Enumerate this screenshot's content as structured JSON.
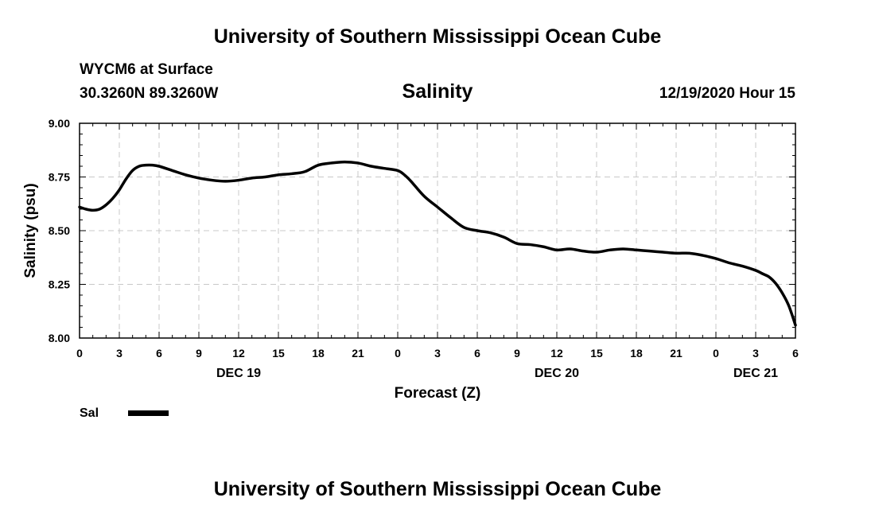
{
  "header": {
    "org_title": "University of Southern Mississippi Ocean Cube",
    "station": "WYCM6 at Surface",
    "coords": "30.3260N 89.3260W",
    "datetime": "12/19/2020 Hour 15"
  },
  "footer": {
    "org_title": "University of Southern Mississippi Ocean Cube"
  },
  "legend": {
    "label": "Sal",
    "color": "#000000"
  },
  "chart_data": {
    "type": "line",
    "title": "Salinity",
    "xlabel": "Forecast (Z)",
    "ylabel": "Salinity (psu)",
    "xlim": [
      0,
      54
    ],
    "ylim": [
      8.0,
      9.0
    ],
    "grid": true,
    "yticks": [
      8.0,
      8.25,
      8.5,
      8.75,
      9.0
    ],
    "ytick_labels": [
      "8.00",
      "8.25",
      "8.50",
      "8.75",
      "9.00"
    ],
    "xticks": [
      0,
      3,
      6,
      9,
      12,
      15,
      18,
      21,
      24,
      27,
      30,
      33,
      36,
      39,
      42,
      45,
      48,
      51,
      54
    ],
    "xtick_labels": [
      "0",
      "3",
      "6",
      "9",
      "12",
      "15",
      "18",
      "21",
      "0",
      "3",
      "6",
      "9",
      "12",
      "15",
      "18",
      "21",
      "0",
      "3",
      "6"
    ],
    "day_labels": [
      {
        "x": 12,
        "label": "DEC 19"
      },
      {
        "x": 36,
        "label": "DEC 20"
      },
      {
        "x": 51,
        "label": "DEC 21"
      }
    ],
    "series": [
      {
        "name": "Sal",
        "x": [
          0,
          0.5,
          1,
          1.5,
          2,
          2.5,
          3,
          3.5,
          4,
          4.5,
          5,
          5.5,
          6,
          7,
          8,
          9,
          10,
          11,
          12,
          13,
          14,
          15,
          16,
          17,
          18,
          19,
          20,
          21,
          22,
          23,
          24,
          24.5,
          25,
          26,
          27,
          28,
          29,
          30,
          31,
          32,
          33,
          34,
          35,
          36,
          37,
          38,
          39,
          40,
          41,
          42,
          43,
          44,
          45,
          46,
          47,
          48,
          49,
          50,
          51,
          51.5,
          52,
          52.5,
          53,
          53.5,
          54
        ],
        "values": [
          8.61,
          8.6,
          8.595,
          8.6,
          8.62,
          8.65,
          8.69,
          8.74,
          8.78,
          8.8,
          8.805,
          8.805,
          8.8,
          8.78,
          8.76,
          8.745,
          8.735,
          8.73,
          8.735,
          8.745,
          8.75,
          8.76,
          8.765,
          8.775,
          8.805,
          8.815,
          8.82,
          8.815,
          8.8,
          8.79,
          8.78,
          8.76,
          8.73,
          8.66,
          8.61,
          8.56,
          8.515,
          8.5,
          8.49,
          8.47,
          8.44,
          8.435,
          8.425,
          8.41,
          8.415,
          8.405,
          8.4,
          8.41,
          8.415,
          8.41,
          8.405,
          8.4,
          8.395,
          8.395,
          8.385,
          8.37,
          8.35,
          8.335,
          8.315,
          8.3,
          8.285,
          8.255,
          8.21,
          8.15,
          8.06
        ]
      }
    ]
  }
}
